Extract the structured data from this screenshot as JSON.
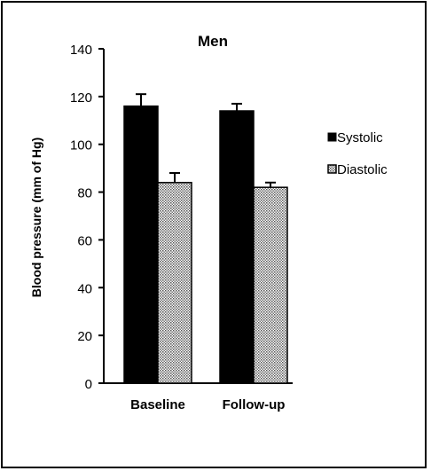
{
  "chart_data": {
    "type": "bar",
    "title": "Men",
    "ylabel": "Blood pressure (mm of Hg)",
    "xlabel": "",
    "categories": [
      "Baseline",
      "Follow-up"
    ],
    "ylim": [
      0,
      140
    ],
    "yticks": [
      0,
      20,
      40,
      60,
      80,
      100,
      120,
      140
    ],
    "series": [
      {
        "name": "Systolic",
        "values": [
          116,
          114
        ],
        "errors": [
          5,
          3
        ],
        "fill": "solid-black"
      },
      {
        "name": "Diastolic",
        "values": [
          84,
          82
        ],
        "errors": [
          4,
          2
        ],
        "fill": "dotted-pattern"
      }
    ],
    "legend_position": "right",
    "grid": false,
    "colors": {
      "systolic": "#000000",
      "diastolic_pattern": "#000000",
      "background": "#ffffff"
    }
  }
}
